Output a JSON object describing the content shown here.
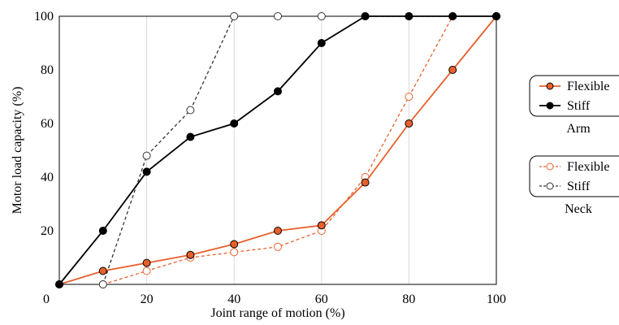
{
  "chart_data": {
    "type": "line",
    "xlabel": "Joint range of motion (%)",
    "ylabel": "Motor load capacity (%)",
    "xlim": [
      0,
      100
    ],
    "ylim": [
      0,
      100
    ],
    "x_ticks": [
      0,
      20,
      40,
      60,
      80,
      100
    ],
    "y_ticks": [
      20,
      40,
      60,
      80,
      100
    ],
    "grid": "vertical",
    "legend_position": "right",
    "series": [
      {
        "name": "Flexible",
        "group": "Arm",
        "line_style": "solid",
        "marker": "filled-circle",
        "color": "#e8602c",
        "x": [
          0,
          10,
          20,
          30,
          40,
          50,
          60,
          70,
          80,
          90,
          100
        ],
        "y": [
          0,
          5,
          8,
          11,
          15,
          20,
          22,
          38,
          60,
          80,
          100
        ]
      },
      {
        "name": "Stiff",
        "group": "Arm",
        "line_style": "solid",
        "marker": "filled-circle",
        "color": "#000000",
        "x": [
          0,
          10,
          20,
          30,
          40,
          50,
          60,
          70,
          80,
          90,
          100
        ],
        "y": [
          0,
          20,
          42,
          55,
          60,
          72,
          90,
          100,
          100,
          100,
          100
        ]
      },
      {
        "name": "Flexible",
        "group": "Neck",
        "line_style": "dashed",
        "marker": "open-circle",
        "color": "#e8602c",
        "x": [
          10,
          20,
          30,
          40,
          50,
          60,
          70,
          80,
          90,
          100
        ],
        "y": [
          0,
          5,
          10,
          12,
          14,
          20,
          40,
          70,
          100,
          100
        ]
      },
      {
        "name": "Stiff",
        "group": "Neck",
        "line_style": "dashed",
        "marker": "open-circle",
        "color": "#333333",
        "x": [
          10,
          20,
          30,
          40,
          50,
          60,
          70,
          80,
          90,
          100
        ],
        "y": [
          0,
          48,
          65,
          100,
          100,
          100,
          100,
          100,
          100,
          100
        ]
      }
    ],
    "legend_groups": [
      {
        "title": "Arm",
        "entries": [
          "Flexible",
          "Stiff"
        ]
      },
      {
        "title": "Neck",
        "entries": [
          "Flexible",
          "Stiff"
        ]
      }
    ]
  }
}
